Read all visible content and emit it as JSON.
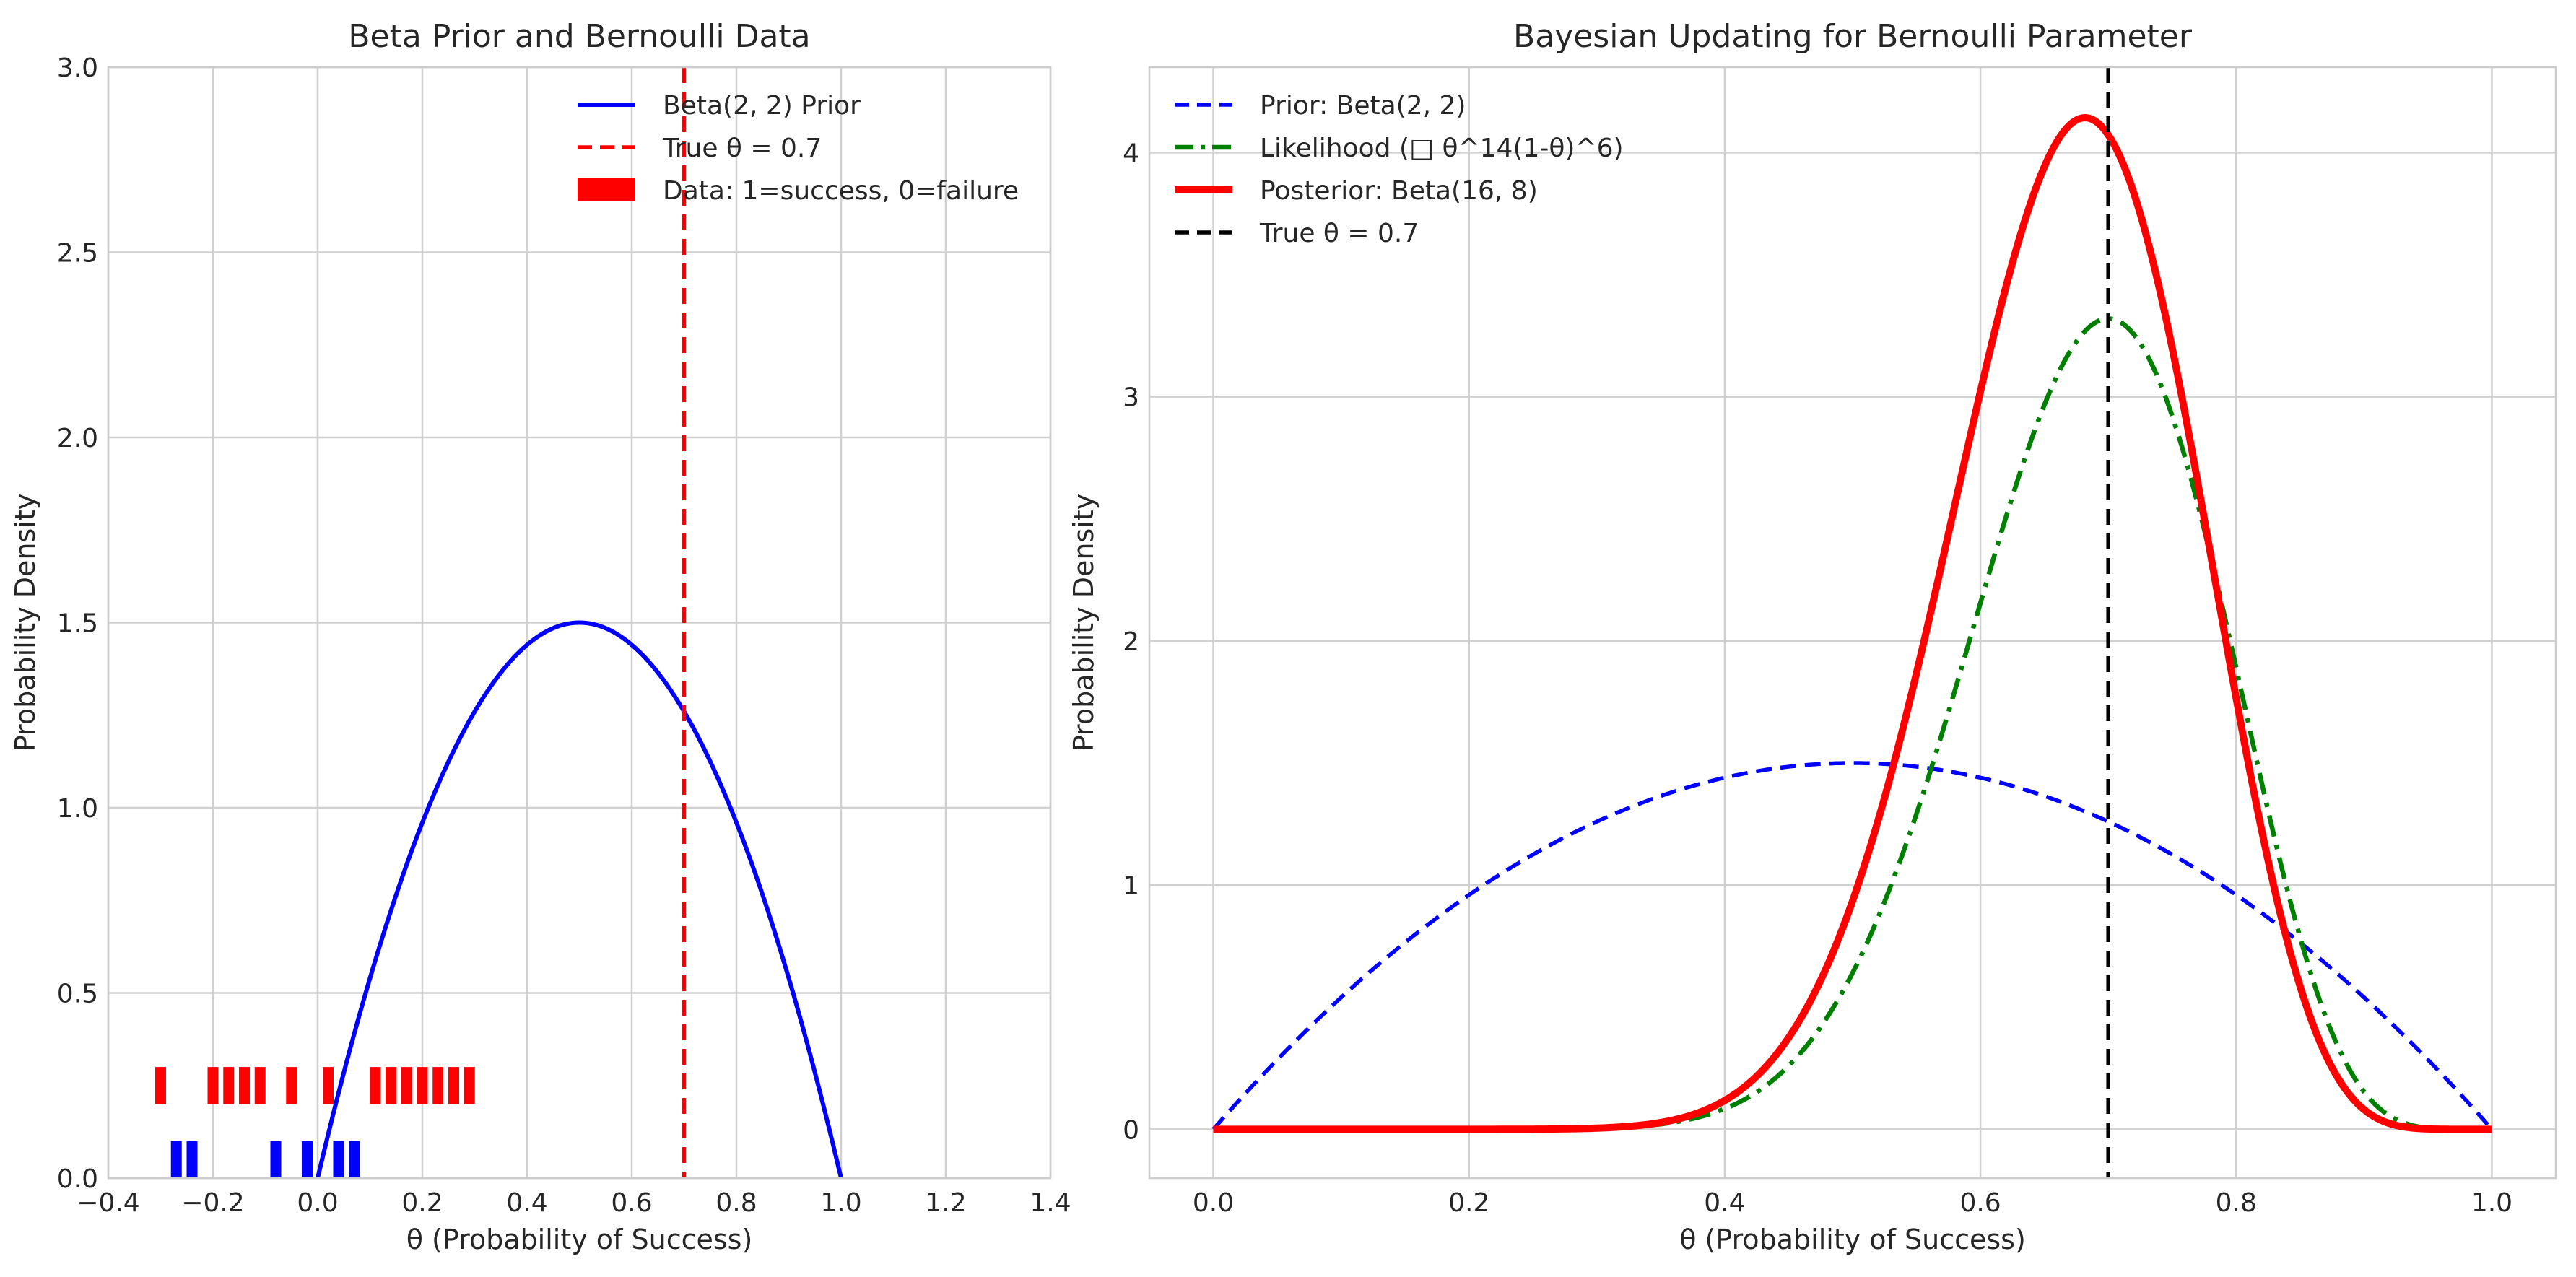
{
  "chart_data": [
    {
      "type": "line",
      "title": "Beta Prior and Bernoulli Data",
      "xlabel": "θ (Probability of Success)",
      "ylabel": "Probability Density",
      "xlim": [
        -0.4,
        1.4
      ],
      "ylim": [
        0,
        3.0
      ],
      "xticks": [
        "−0.4",
        "−0.2",
        "0.0",
        "0.2",
        "0.4",
        "0.6",
        "0.8",
        "1.0",
        "1.2",
        "1.4"
      ],
      "xtick_values": [
        -0.4,
        -0.2,
        0.0,
        0.2,
        0.4,
        0.6,
        0.8,
        1.0,
        1.2,
        1.4
      ],
      "yticks": [
        "0.0",
        "0.5",
        "1.0",
        "1.5",
        "2.0",
        "2.5",
        "3.0"
      ],
      "ytick_values": [
        0.0,
        0.5,
        1.0,
        1.5,
        2.0,
        2.5,
        3.0
      ],
      "grid": true,
      "legend_position": "top-right",
      "series": [
        {
          "name": "Beta(2, 2) Prior",
          "kind": "beta-pdf",
          "alpha": 2,
          "beta": 2,
          "color": "#0000ff",
          "style": "solid"
        },
        {
          "name": "True θ = 0.7",
          "kind": "vline",
          "x": 0.7,
          "color": "#ff0000",
          "style": "dashed"
        },
        {
          "name": "Data: 1=success, 0=failure",
          "kind": "bar-markers",
          "color_success": "#ff0000",
          "color_failure": "#0000ff",
          "success_x": [
            -0.3,
            -0.2,
            -0.17,
            -0.14,
            -0.11,
            -0.05,
            0.02,
            0.11,
            0.14,
            0.17,
            0.2,
            0.23,
            0.26,
            0.29
          ],
          "success_y": 0.3,
          "failure_x": [
            -0.27,
            -0.24,
            -0.08,
            -0.02,
            0.04,
            0.07
          ],
          "failure_y": 0.1,
          "bar_height": 0.1
        }
      ]
    },
    {
      "type": "line",
      "title": "Bayesian Updating for Bernoulli Parameter",
      "xlabel": "θ (Probability of Success)",
      "ylabel": "Probability Density",
      "xlim": [
        -0.05,
        1.05
      ],
      "ylim": [
        -0.2,
        4.35
      ],
      "xticks": [
        "0.0",
        "0.2",
        "0.4",
        "0.6",
        "0.8",
        "1.0"
      ],
      "xtick_values": [
        0.0,
        0.2,
        0.4,
        0.6,
        0.8,
        1.0
      ],
      "yticks": [
        "0",
        "1",
        "2",
        "3",
        "4"
      ],
      "ytick_values": [
        0,
        1,
        2,
        3,
        4
      ],
      "grid": true,
      "legend_position": "top-left",
      "series": [
        {
          "name": "Prior: Beta(2, 2)",
          "kind": "beta-pdf",
          "alpha": 2,
          "beta": 2,
          "color": "#0000ff",
          "style": "dashed"
        },
        {
          "name": "Likelihood (□ θ^14(1-θ)^6)",
          "kind": "scaled-likelihood",
          "successes": 14,
          "failures": 6,
          "peak": 3.32,
          "color": "#008000",
          "style": "dashdot"
        },
        {
          "name": "Posterior: Beta(16, 8)",
          "kind": "beta-pdf",
          "alpha": 16,
          "beta": 8,
          "color": "#ff0000",
          "style": "solid-thick"
        },
        {
          "name": "True θ = 0.7",
          "kind": "vline",
          "x": 0.7,
          "color": "#000000",
          "style": "dashed"
        }
      ]
    }
  ]
}
